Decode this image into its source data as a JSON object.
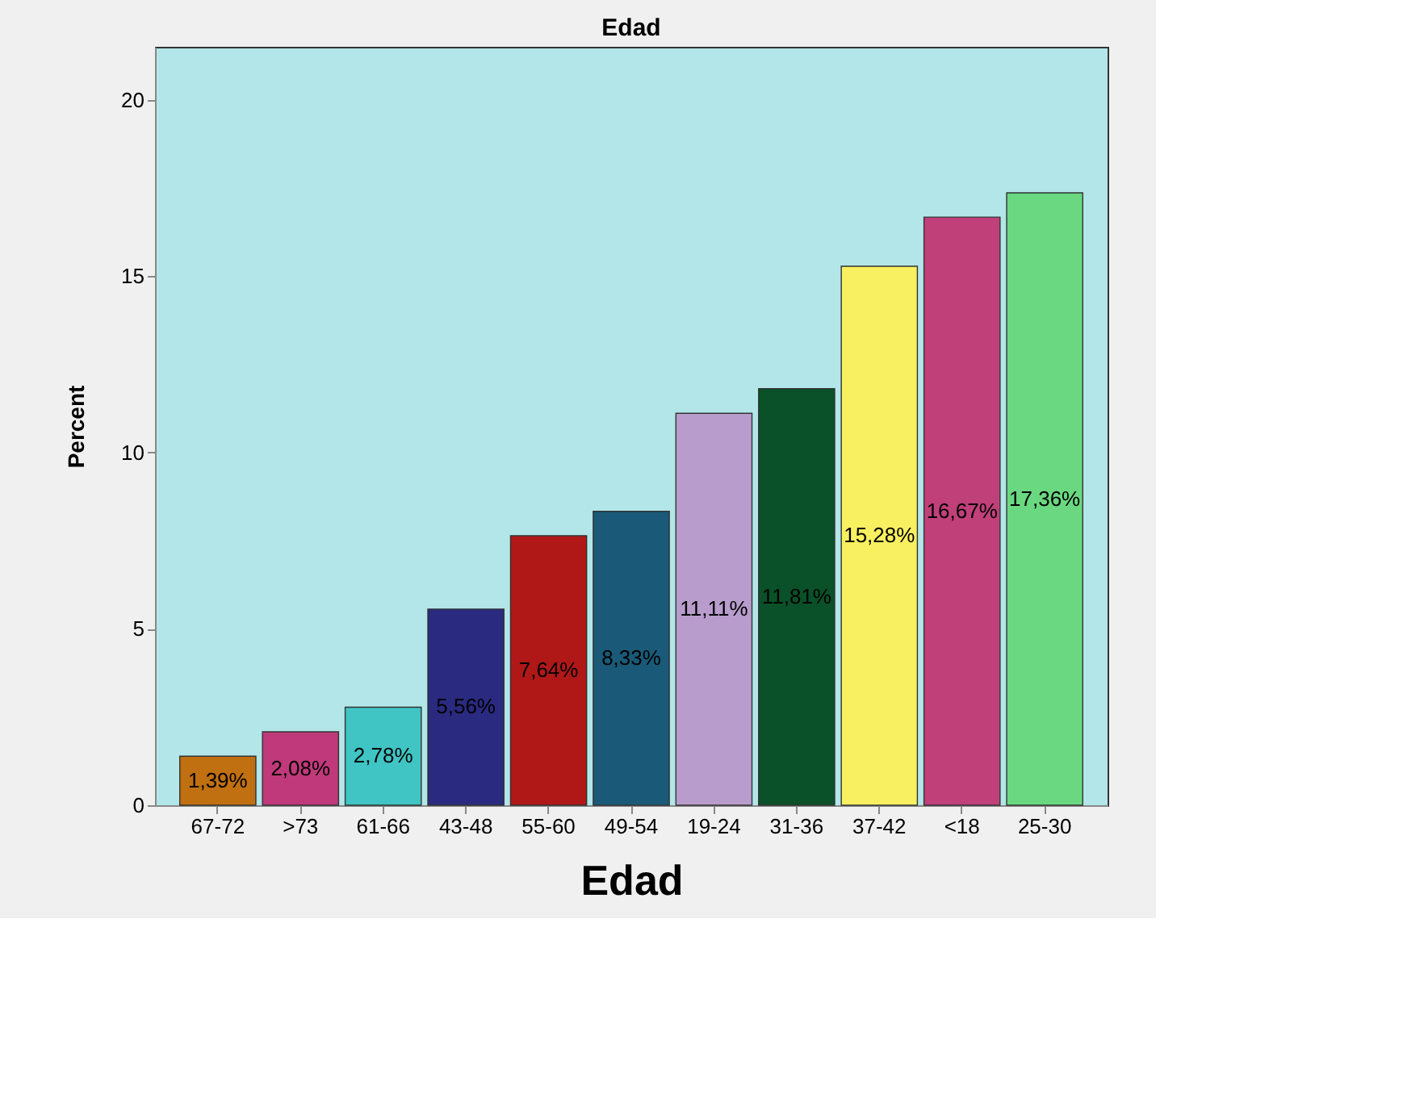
{
  "chart_data": {
    "type": "bar",
    "title": "Edad",
    "xlabel": "Edad",
    "ylabel": "Percent",
    "categories": [
      "67-72",
      ">73",
      "61-66",
      "43-48",
      "55-60",
      "49-54",
      "19-24",
      "31-36",
      "37-42",
      "<18",
      "25-30"
    ],
    "values": [
      1.39,
      2.08,
      2.78,
      5.56,
      7.64,
      8.33,
      11.11,
      11.81,
      15.28,
      16.67,
      17.36
    ],
    "colors": [
      "#c07010",
      "#c0397a",
      "#40c4c4",
      "#2a2a80",
      "#b01818",
      "#1a5a78",
      "#b89ccc",
      "#0a5028",
      "#f8f060",
      "#c0407a",
      "#6ad880"
    ],
    "value_labels": [
      "1,39%",
      "2,08%",
      "2,78%",
      "5,56%",
      "7,64%",
      "8,33%",
      "11,11%",
      "11,81%",
      "15,28%",
      "16,67%",
      "17,36%"
    ],
    "ylim": [
      0,
      21.5
    ],
    "yticks": [
      0,
      5,
      10,
      15,
      20
    ],
    "grid": false
  }
}
